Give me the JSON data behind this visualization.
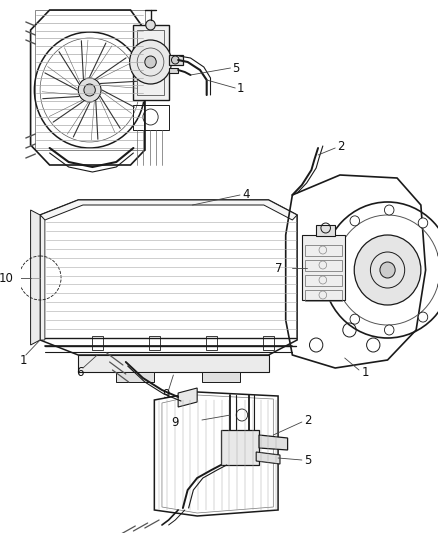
{
  "bg_color": "#ffffff",
  "line_color": "#1a1a1a",
  "gray_color": "#888888",
  "light_gray": "#cccccc",
  "fig_width": 4.38,
  "fig_height": 5.33,
  "dpi": 100,
  "font_size": 8.5,
  "leader_color": "#444444"
}
